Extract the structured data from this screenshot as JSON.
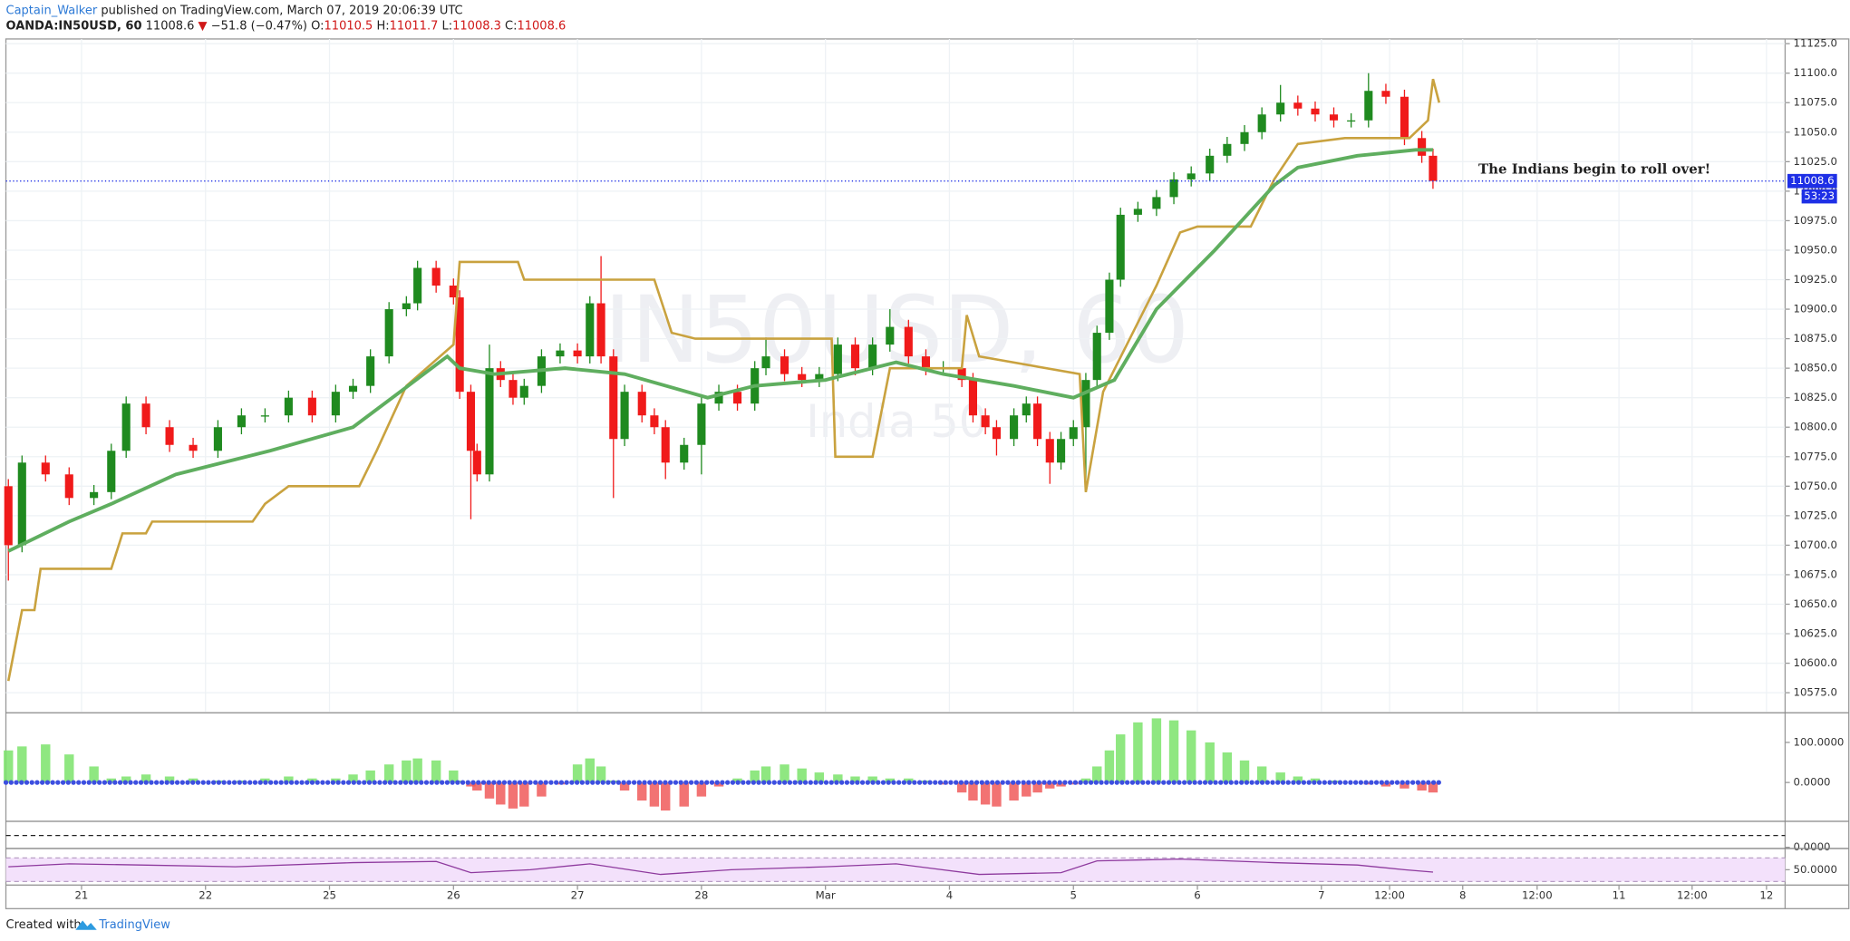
{
  "header": {
    "author": "Captain_Walker",
    "published": "published on TradingView.com, March 07, 2019 20:06:39 UTC",
    "symbol": "OANDA:IN50USD, 60",
    "last": 11008.6,
    "arrow": "▼",
    "change": "−51.8 (−0.47%)",
    "open_label": "O:",
    "open": 11010.5,
    "high_label": "H:",
    "high": 11011.7,
    "low_label": "L:",
    "low": 11008.3,
    "close_label": "C:",
    "close": 11008.6
  },
  "footer": {
    "created": "Created with",
    "brand": "TradingView"
  },
  "chart_data": [
    {
      "type": "candlestick",
      "watermark": "IN50USD, 60",
      "watermark_sub": "India 50",
      "annotation": "The Indians begin to roll over!",
      "xlim": [
        0.39,
        14.74
      ],
      "xticks": [
        {
          "value": 1,
          "label": "21"
        },
        {
          "value": 2,
          "label": "22"
        },
        {
          "value": 3,
          "label": "25"
        },
        {
          "value": 4,
          "label": "26"
        },
        {
          "value": 5,
          "label": "27"
        },
        {
          "value": 6,
          "label": "28"
        },
        {
          "value": 7,
          "label": "Mar"
        },
        {
          "value": 8,
          "label": "4"
        },
        {
          "value": 9,
          "label": "5"
        },
        {
          "value": 10,
          "label": "6"
        },
        {
          "value": 11,
          "label": "7"
        },
        {
          "value": 11.55,
          "label": "12:00"
        },
        {
          "value": 12.14,
          "label": "8"
        },
        {
          "value": 12.74,
          "label": "12:00"
        },
        {
          "value": 13.4,
          "label": "11"
        },
        {
          "value": 13.99,
          "label": "12:00"
        },
        {
          "value": 14.59,
          "label": "12"
        }
      ],
      "ylim": [
        10559,
        11129
      ],
      "yticks": [
        {
          "value": 10575,
          "label": "10575.0"
        },
        {
          "value": 10600,
          "label": "10600.0"
        },
        {
          "value": 10625,
          "label": "10625.0"
        },
        {
          "value": 10650,
          "label": "10650.0"
        },
        {
          "value": 10675,
          "label": "10675.0"
        },
        {
          "value": 10700,
          "label": "10700.0"
        },
        {
          "value": 10725,
          "label": "10725.0"
        },
        {
          "value": 10750,
          "label": "10750.0"
        },
        {
          "value": 10775,
          "label": "10775.0"
        },
        {
          "value": 10800,
          "label": "10800.0"
        },
        {
          "value": 10825,
          "label": "10825.0"
        },
        {
          "value": 10850,
          "label": "10850.0"
        },
        {
          "value": 10875,
          "label": "10875.0"
        },
        {
          "value": 10900,
          "label": "10900.0"
        },
        {
          "value": 10925,
          "label": "10925.0"
        },
        {
          "value": 10950,
          "label": "10950.0"
        },
        {
          "value": 10975,
          "label": "10975.0"
        },
        {
          "value": 11000,
          "label": "11000.0"
        },
        {
          "value": 11025,
          "label": "11025.0"
        },
        {
          "value": 11050,
          "label": "11050.0"
        },
        {
          "value": 11075,
          "label": "11075.0"
        },
        {
          "value": 11100,
          "label": "11100.0"
        },
        {
          "value": 11125,
          "label": "11125.0"
        }
      ],
      "grid": true,
      "up_color": "#1f8a1f",
      "down_color": "#f01a1a",
      "x": [
        0.41,
        0.52,
        0.71,
        0.9,
        1.1,
        1.24,
        1.36,
        1.52,
        1.71,
        1.9,
        2.1,
        2.29,
        2.48,
        2.67,
        2.86,
        3.05,
        3.19,
        3.33,
        3.48,
        3.62,
        3.71,
        3.86,
        4.0,
        4.05,
        4.14,
        4.19,
        4.29,
        4.38,
        4.48,
        4.57,
        4.71,
        4.86,
        5.0,
        5.1,
        5.19,
        5.29,
        5.38,
        5.52,
        5.62,
        5.71,
        5.86,
        6.0,
        6.14,
        6.29,
        6.43,
        6.52,
        6.67,
        6.81,
        6.95,
        7.1,
        7.24,
        7.38,
        7.52,
        7.67,
        7.81,
        7.95,
        8.1,
        8.19,
        8.29,
        8.38,
        8.52,
        8.62,
        8.71,
        8.81,
        8.9,
        9.0,
        9.1,
        9.19,
        9.29,
        9.38,
        9.52,
        9.67,
        9.81,
        9.95,
        10.1,
        10.24,
        10.38,
        10.52,
        10.67,
        10.81,
        10.95,
        11.1,
        11.24,
        11.38,
        11.52,
        11.67,
        11.81,
        11.9
      ],
      "ohlc": [
        [
          10750,
          10756,
          10670,
          10700
        ],
        [
          10700,
          10776,
          10694,
          10770
        ],
        [
          10770,
          10776,
          10754,
          10760
        ],
        [
          10760,
          10766,
          10734,
          10740
        ],
        [
          10740,
          10751,
          10734,
          10745
        ],
        [
          10745,
          10786,
          10739,
          10780
        ],
        [
          10780,
          10826,
          10774,
          10820
        ],
        [
          10820,
          10826,
          10794,
          10800
        ],
        [
          10800,
          10806,
          10779,
          10785
        ],
        [
          10785,
          10791,
          10774,
          10780
        ],
        [
          10780,
          10806,
          10774,
          10800
        ],
        [
          10800,
          10816,
          10794,
          10810
        ],
        [
          10810,
          10816,
          10804,
          10810
        ],
        [
          10810,
          10831,
          10804,
          10825
        ],
        [
          10825,
          10831,
          10804,
          10810
        ],
        [
          10810,
          10836,
          10804,
          10830
        ],
        [
          10830,
          10841,
          10824,
          10835
        ],
        [
          10835,
          10866,
          10829,
          10860
        ],
        [
          10860,
          10906,
          10854,
          10900
        ],
        [
          10900,
          10911,
          10894,
          10905
        ],
        [
          10905,
          10941,
          10899,
          10935
        ],
        [
          10935,
          10941,
          10914,
          10920
        ],
        [
          10920,
          10926,
          10904,
          10910
        ],
        [
          10910,
          10916,
          10824,
          10830
        ],
        [
          10830,
          10836,
          10722,
          10780
        ],
        [
          10780,
          10786,
          10754,
          10760
        ],
        [
          10760,
          10870,
          10754,
          10850
        ],
        [
          10850,
          10856,
          10834,
          10840
        ],
        [
          10840,
          10846,
          10819,
          10825
        ],
        [
          10825,
          10841,
          10819,
          10835
        ],
        [
          10835,
          10866,
          10829,
          10860
        ],
        [
          10860,
          10871,
          10854,
          10865
        ],
        [
          10865,
          10871,
          10854,
          10860
        ],
        [
          10860,
          10911,
          10854,
          10905
        ],
        [
          10905,
          10945,
          10854,
          10860
        ],
        [
          10860,
          10866,
          10740,
          10790
        ],
        [
          10790,
          10836,
          10784,
          10830
        ],
        [
          10830,
          10836,
          10804,
          10810
        ],
        [
          10810,
          10816,
          10794,
          10800
        ],
        [
          10800,
          10806,
          10756,
          10770
        ],
        [
          10770,
          10791,
          10764,
          10785
        ],
        [
          10785,
          10826,
          10760,
          10820
        ],
        [
          10820,
          10836,
          10814,
          10830
        ],
        [
          10830,
          10836,
          10814,
          10820
        ],
        [
          10820,
          10856,
          10814,
          10850
        ],
        [
          10850,
          10876,
          10844,
          10860
        ],
        [
          10860,
          10866,
          10839,
          10845
        ],
        [
          10845,
          10851,
          10834,
          10840
        ],
        [
          10840,
          10851,
          10834,
          10845
        ],
        [
          10845,
          10876,
          10839,
          10870
        ],
        [
          10870,
          10876,
          10844,
          10850
        ],
        [
          10850,
          10876,
          10844,
          10870
        ],
        [
          10870,
          10900,
          10864,
          10885
        ],
        [
          10885,
          10891,
          10854,
          10860
        ],
        [
          10860,
          10866,
          10844,
          10850
        ],
        [
          10850,
          10856,
          10844,
          10850
        ],
        [
          10850,
          10856,
          10834,
          10840
        ],
        [
          10840,
          10846,
          10804,
          10810
        ],
        [
          10810,
          10816,
          10794,
          10800
        ],
        [
          10800,
          10806,
          10776,
          10790
        ],
        [
          10790,
          10816,
          10784,
          10810
        ],
        [
          10810,
          10826,
          10804,
          10820
        ],
        [
          10820,
          10826,
          10784,
          10790
        ],
        [
          10790,
          10796,
          10752,
          10770
        ],
        [
          10770,
          10796,
          10764,
          10790
        ],
        [
          10790,
          10806,
          10784,
          10800
        ],
        [
          10800,
          10846,
          10745,
          10840
        ],
        [
          10840,
          10886,
          10834,
          10880
        ],
        [
          10880,
          10931,
          10874,
          10925
        ],
        [
          10925,
          10986,
          10919,
          10980
        ],
        [
          10980,
          10991,
          10974,
          10985
        ],
        [
          10985,
          11001,
          10979,
          10995
        ],
        [
          10995,
          11016,
          10989,
          11010
        ],
        [
          11010,
          11021,
          11004,
          11015
        ],
        [
          11015,
          11036,
          11009,
          11030
        ],
        [
          11030,
          11046,
          11024,
          11040
        ],
        [
          11040,
          11056,
          11034,
          11050
        ],
        [
          11050,
          11071,
          11044,
          11065
        ],
        [
          11065,
          11090,
          11059,
          11075
        ],
        [
          11075,
          11081,
          11064,
          11070
        ],
        [
          11070,
          11076,
          11059,
          11065
        ],
        [
          11065,
          11071,
          11054,
          11060
        ],
        [
          11060,
          11066,
          11054,
          11060
        ],
        [
          11060,
          11100,
          11054,
          11085
        ],
        [
          11085,
          11091,
          11074,
          11080
        ],
        [
          11080,
          11086,
          11039,
          11045
        ],
        [
          11045,
          11051,
          11024,
          11030
        ],
        [
          11030,
          11036,
          11002,
          11008.6
        ]
      ],
      "lines": [
        {
          "color": "#c9a23f",
          "width": 2,
          "x": [
            0.41,
            0.52,
            0.62,
            0.67,
            1.24,
            1.33,
            1.52,
            1.57,
            2.38,
            2.48,
            2.67,
            3.24,
            3.38,
            3.62,
            4.0,
            4.05,
            4.52,
            4.57,
            5.62,
            5.76,
            5.95,
            7.05,
            7.08,
            7.38,
            7.52,
            8.1,
            8.14,
            8.24,
            9.05,
            9.1,
            9.24,
            9.67,
            9.86,
            10.0,
            10.43,
            10.62,
            10.81,
            11.19,
            11.71,
            11.86,
            11.9,
            11.95
          ],
          "values": [
            10585,
            10645,
            10645,
            10680,
            10680,
            10710,
            10710,
            10720,
            10720,
            10735,
            10750,
            10750,
            10780,
            10835,
            10870,
            10940,
            10940,
            10925,
            10925,
            10880,
            10875,
            10875,
            10775,
            10775,
            10850,
            10850,
            10895,
            10860,
            10845,
            10745,
            10830,
            10920,
            10965,
            10970,
            10970,
            11010,
            11040,
            11045,
            11045,
            11060,
            11095,
            11075
          ]
        },
        {
          "color": "#5fae5f",
          "width": 3,
          "x": [
            0.41,
            0.9,
            1.24,
            1.76,
            2.52,
            3.19,
            3.57,
            3.95,
            4.05,
            4.33,
            4.9,
            5.38,
            6.05,
            6.43,
            7.0,
            7.57,
            7.95,
            8.52,
            9.0,
            9.33,
            9.67,
            10.14,
            10.62,
            10.81,
            11.29,
            11.76,
            11.9
          ],
          "values": [
            10695,
            10720,
            10735,
            10760,
            10780,
            10800,
            10830,
            10860,
            10850,
            10845,
            10850,
            10845,
            10825,
            10835,
            10840,
            10855,
            10845,
            10835,
            10825,
            10840,
            10900,
            10950,
            11005,
            11020,
            11030,
            11035,
            11035
          ]
        }
      ],
      "last_price": 11008.6,
      "countdown": "53:23",
      "price_color": "#1e2fe6"
    },
    {
      "type": "bar",
      "ylim": [
        -94,
        171
      ],
      "yticks": [
        {
          "value": 100,
          "label": "100.0000"
        },
        {
          "value": 0,
          "label": "0.0000"
        }
      ],
      "pos_color": "#7be36b",
      "neg_color": "#f05a5a",
      "x": [
        0.41,
        0.52,
        0.71,
        0.9,
        1.1,
        1.24,
        1.36,
        1.52,
        1.71,
        1.9,
        2.1,
        2.29,
        2.48,
        2.67,
        2.86,
        3.05,
        3.19,
        3.33,
        3.48,
        3.62,
        3.71,
        3.86,
        4.0,
        4.05,
        4.14,
        4.19,
        4.29,
        4.38,
        4.48,
        4.57,
        4.71,
        4.86,
        5.0,
        5.1,
        5.19,
        5.29,
        5.38,
        5.52,
        5.62,
        5.71,
        5.86,
        6.0,
        6.14,
        6.29,
        6.43,
        6.52,
        6.67,
        6.81,
        6.95,
        7.1,
        7.24,
        7.38,
        7.52,
        7.67,
        7.81,
        7.95,
        8.1,
        8.19,
        8.29,
        8.38,
        8.52,
        8.62,
        8.71,
        8.81,
        8.9,
        9.0,
        9.1,
        9.19,
        9.29,
        9.38,
        9.52,
        9.67,
        9.81,
        9.95,
        10.1,
        10.24,
        10.38,
        10.52,
        10.67,
        10.81,
        10.95,
        11.1,
        11.24,
        11.38,
        11.52,
        11.67,
        11.81,
        11.9
      ],
      "values": [
        80,
        90,
        95,
        70,
        40,
        10,
        15,
        20,
        15,
        10,
        5,
        5,
        10,
        15,
        10,
        10,
        20,
        30,
        45,
        55,
        60,
        55,
        30,
        5,
        -10,
        -20,
        -40,
        -55,
        -65,
        -60,
        -35,
        -5,
        45,
        60,
        40,
        5,
        -20,
        -45,
        -60,
        -70,
        -60,
        -35,
        -10,
        10,
        30,
        40,
        45,
        35,
        25,
        20,
        15,
        15,
        10,
        10,
        5,
        -5,
        -25,
        -45,
        -55,
        -60,
        -45,
        -35,
        -25,
        -15,
        -10,
        -5,
        10,
        40,
        80,
        120,
        150,
        160,
        155,
        130,
        100,
        75,
        55,
        40,
        25,
        15,
        10,
        5,
        0,
        -5,
        -10,
        -15,
        -20,
        -25
      ]
    },
    {
      "type": "level",
      "ylim": [
        -10,
        105
      ],
      "yticks": [
        {
          "value": 0,
          "label": "0.0000"
        }
      ],
      "hline": 50
    },
    {
      "type": "line",
      "ylim": [
        24,
        84
      ],
      "yticks": [
        {
          "value": 50,
          "label": "50.0000"
        }
      ],
      "band": [
        30,
        70
      ],
      "band_color": "#f3e1fb",
      "color": "#8e3a9e",
      "x": [
        0.41,
        0.9,
        1.48,
        2.24,
        3.19,
        3.86,
        4.14,
        4.62,
        5.1,
        5.67,
        6.24,
        7.0,
        7.57,
        8.24,
        8.9,
        9.19,
        9.86,
        10.62,
        11.29,
        11.67,
        11.9
      ],
      "values": [
        55,
        60,
        58,
        55,
        62,
        64,
        45,
        50,
        60,
        42,
        50,
        55,
        60,
        42,
        45,
        65,
        68,
        62,
        58,
        50,
        46
      ]
    }
  ]
}
